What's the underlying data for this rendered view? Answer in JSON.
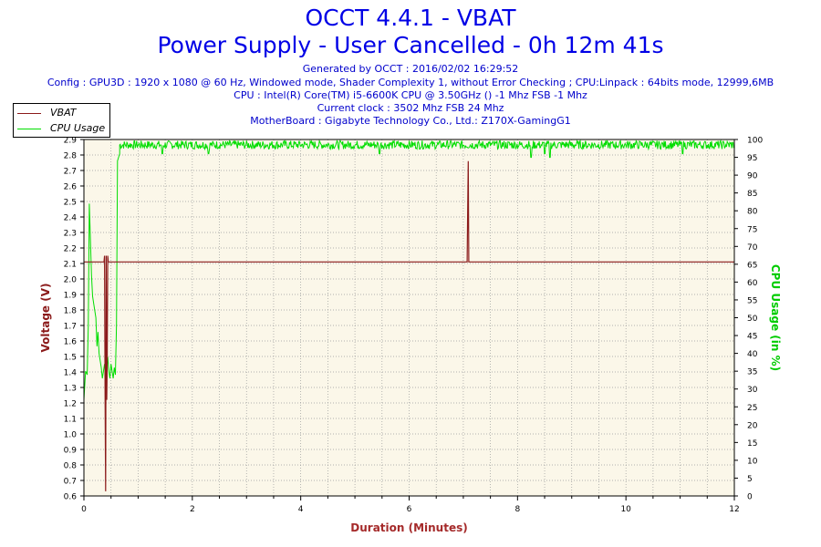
{
  "header": {
    "title": "OCCT 4.4.1 - VBAT",
    "subtitle": "Power Supply - User Cancelled - 0h 12m 41s",
    "info_lines": [
      "Generated by OCCT : 2016/02/02 16:29:52",
      "Config : GPU3D : 1920 x 1080 @ 60 Hz, Windowed mode, Shader Complexity 1, without Error Checking ; CPU:Linpack : 64bits mode, 12999,6MB",
      "CPU : Intel(R) Core(TM) i5-6600K CPU @ 3.50GHz () -1 Mhz FSB -1 Mhz",
      "Current clock : 3502 Mhz FSB 24 Mhz",
      "MotherBoard : Gigabyte Technology Co., Ltd.: Z170X-GamingG1"
    ]
  },
  "colors": {
    "vbat": "#8b1a1a",
    "cpu": "#00dd00",
    "plot_bg": "#fbf7e9",
    "title": "#0000e6",
    "info": "#0000cc",
    "axis_label_left": "#8b1a1a",
    "axis_label_right": "#00cc00",
    "axis_label_bottom": "#a52a2a"
  },
  "chart_data": {
    "type": "line",
    "title": "OCCT 4.4.1 - VBAT",
    "xlabel": "Duration (Minutes)",
    "ylabel_left": "Voltage (V)",
    "ylabel_right": "CPU Usage (in %)",
    "xlim": [
      0,
      12
    ],
    "ylim_left": [
      0.6,
      2.9
    ],
    "ylim_right": [
      0,
      100
    ],
    "x_ticks": [
      0,
      2,
      4,
      6,
      8,
      10,
      12
    ],
    "y_left_ticks": [
      "0.6",
      "0.7",
      "0.8",
      "0.9",
      "1.0",
      "1.1",
      "1.2",
      "1.3",
      "1.4",
      "1.5",
      "1.6",
      "1.7",
      "1.8",
      "1.9",
      "2.0",
      "2.1",
      "2.2",
      "2.3",
      "2.4",
      "2.5",
      "2.6",
      "2.7",
      "2.8",
      "2.9"
    ],
    "y_right_ticks": [
      0,
      5,
      10,
      15,
      20,
      25,
      30,
      35,
      40,
      45,
      50,
      55,
      60,
      65,
      70,
      75,
      80,
      85,
      90,
      95,
      100
    ],
    "grid": true,
    "legend_position": "top-left",
    "series": [
      {
        "name": "VBAT",
        "axis": "left",
        "x": [
          0.0,
          0.37,
          0.38,
          0.39,
          0.4,
          0.41,
          0.42,
          0.43,
          0.44,
          0.45,
          7.06,
          7.07,
          7.08,
          7.09,
          7.1,
          7.11,
          12.0
        ],
        "y": [
          2.11,
          2.11,
          2.15,
          1.25,
          0.63,
          2.15,
          1.22,
          1.45,
          2.15,
          2.11,
          2.11,
          2.11,
          2.45,
          2.76,
          2.11,
          2.11,
          2.11
        ]
      },
      {
        "name": "CPU Usage",
        "axis": "right",
        "x": [
          0.0,
          0.03,
          0.06,
          0.08,
          0.1,
          0.12,
          0.14,
          0.16,
          0.18,
          0.2,
          0.22,
          0.24,
          0.26,
          0.28,
          0.3,
          0.32,
          0.34,
          0.36,
          0.38,
          0.4,
          0.42,
          0.44,
          0.46,
          0.48,
          0.5,
          0.52,
          0.54,
          0.56,
          0.58,
          0.6,
          0.62,
          0.66,
          0.7,
          0.8,
          1.0,
          12.0
        ],
        "y": [
          27,
          35,
          34,
          48,
          82,
          72,
          62,
          56,
          54,
          52,
          50,
          42,
          46,
          40,
          38,
          36,
          33,
          35,
          37,
          34,
          35,
          39,
          35,
          33,
          37,
          35,
          33,
          36,
          34,
          48,
          94,
          96,
          97,
          98,
          98,
          98
        ],
        "noise": {
          "from": 0.66,
          "to": 12.0,
          "center": 98.5,
          "amplitude": 1.2,
          "dips": [
            [
              1.45,
              96
            ],
            [
              2.3,
              96
            ],
            [
              5.45,
              96
            ],
            [
              8.25,
              95
            ],
            [
              8.5,
              96
            ],
            [
              8.6,
              95
            ],
            [
              11.05,
              96
            ]
          ]
        }
      }
    ]
  }
}
